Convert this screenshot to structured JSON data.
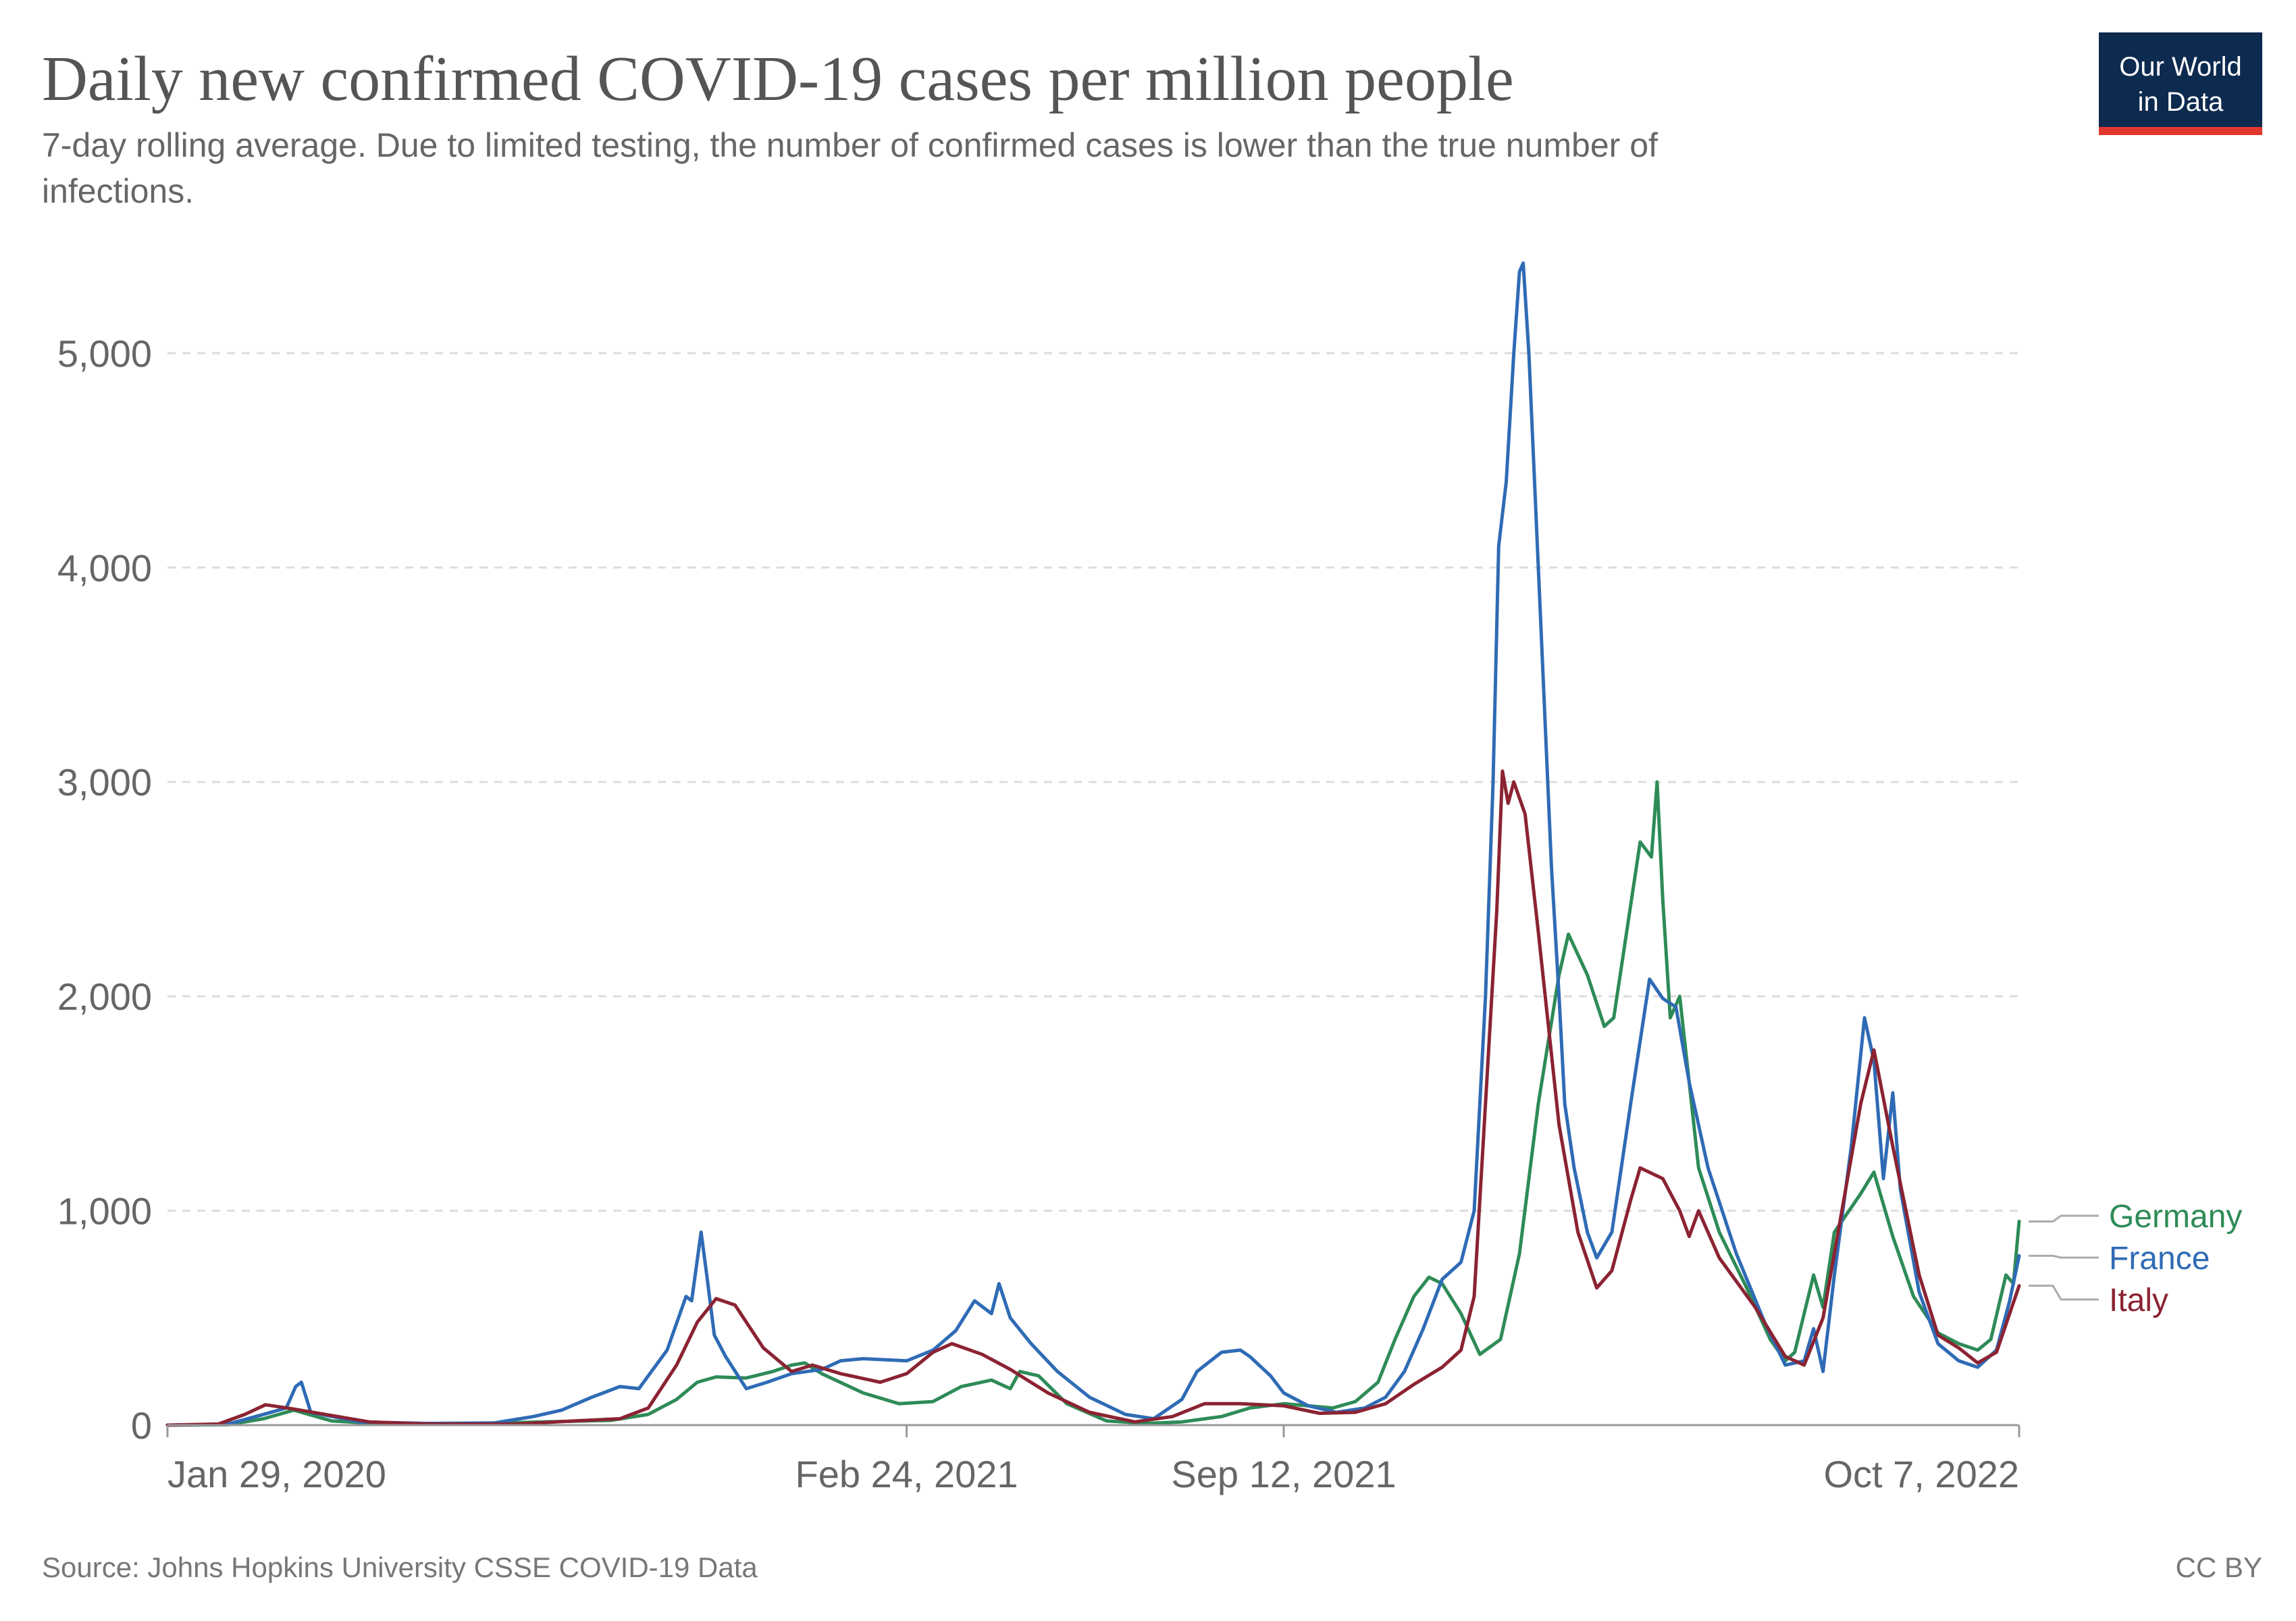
{
  "chart_data": {
    "type": "line",
    "title": "Daily new confirmed COVID-19 cases per million people",
    "subtitle_line1": "7-day rolling average. Due to limited testing, the number of confirmed cases is lower than the true number of",
    "subtitle_line2": "infections.",
    "x_axis": {
      "type": "date",
      "start": "2020-01-29",
      "end": "2022-10-07",
      "tick_labels": [
        {
          "date": "2020-01-29",
          "label": "Jan 29, 2020"
        },
        {
          "date": "2021-02-24",
          "label": "Feb 24, 2021"
        },
        {
          "date": "2021-09-12",
          "label": "Sep 12, 2021"
        },
        {
          "date": "2022-10-07",
          "label": "Oct 7, 2022"
        }
      ]
    },
    "y_axis": {
      "ylim": [
        0,
        5450
      ],
      "ticks": [
        {
          "value": 0,
          "label": "0"
        },
        {
          "value": 1000,
          "label": "1,000"
        },
        {
          "value": 2000,
          "label": "2,000"
        },
        {
          "value": 3000,
          "label": "3,000"
        },
        {
          "value": 4000,
          "label": "4,000"
        },
        {
          "value": 5000,
          "label": "5,000"
        }
      ]
    },
    "grid": "horizontal-dashed",
    "legend_placement": "right-end-labels",
    "series": [
      {
        "name": "Germany",
        "color": "#2e8b57",
        "points": [
          [
            "2020-01-29",
            0
          ],
          [
            "2020-03-01",
            2
          ],
          [
            "2020-03-20",
            30
          ],
          [
            "2020-04-05",
            70
          ],
          [
            "2020-04-25",
            20
          ],
          [
            "2020-05-20",
            6
          ],
          [
            "2020-07-01",
            5
          ],
          [
            "2020-08-15",
            15
          ],
          [
            "2020-09-20",
            22
          ],
          [
            "2020-10-10",
            50
          ],
          [
            "2020-10-25",
            120
          ],
          [
            "2020-11-05",
            200
          ],
          [
            "2020-11-15",
            225
          ],
          [
            "2020-12-01",
            220
          ],
          [
            "2020-12-15",
            250
          ],
          [
            "2020-12-25",
            280
          ],
          [
            "2021-01-01",
            290
          ],
          [
            "2021-01-10",
            240
          ],
          [
            "2021-02-01",
            150
          ],
          [
            "2021-02-20",
            100
          ],
          [
            "2021-03-10",
            110
          ],
          [
            "2021-03-25",
            180
          ],
          [
            "2021-04-10",
            210
          ],
          [
            "2021-04-20",
            170
          ],
          [
            "2021-04-25",
            250
          ],
          [
            "2021-05-05",
            230
          ],
          [
            "2021-05-20",
            100
          ],
          [
            "2021-06-10",
            20
          ],
          [
            "2021-07-01",
            8
          ],
          [
            "2021-07-20",
            15
          ],
          [
            "2021-08-10",
            40
          ],
          [
            "2021-08-25",
            80
          ],
          [
            "2021-09-12",
            100
          ],
          [
            "2021-09-25",
            90
          ],
          [
            "2021-10-08",
            80
          ],
          [
            "2021-10-20",
            110
          ],
          [
            "2021-11-01",
            200
          ],
          [
            "2021-11-10",
            400
          ],
          [
            "2021-11-20",
            600
          ],
          [
            "2021-11-28",
            690
          ],
          [
            "2021-12-05",
            660
          ],
          [
            "2021-12-15",
            520
          ],
          [
            "2021-12-25",
            330
          ],
          [
            "2022-01-05",
            400
          ],
          [
            "2022-01-15",
            800
          ],
          [
            "2022-01-25",
            1500
          ],
          [
            "2022-02-05",
            2100
          ],
          [
            "2022-02-10",
            2290
          ],
          [
            "2022-02-20",
            2100
          ],
          [
            "2022-03-01",
            1860
          ],
          [
            "2022-03-06",
            1900
          ],
          [
            "2022-03-12",
            2250
          ],
          [
            "2022-03-20",
            2720
          ],
          [
            "2022-03-26",
            2650
          ],
          [
            "2022-03-29",
            3000
          ],
          [
            "2022-04-01",
            2450
          ],
          [
            "2022-04-05",
            1900
          ],
          [
            "2022-04-10",
            2000
          ],
          [
            "2022-04-15",
            1600
          ],
          [
            "2022-04-20",
            1200
          ],
          [
            "2022-05-01",
            900
          ],
          [
            "2022-05-15",
            650
          ],
          [
            "2022-05-28",
            400
          ],
          [
            "2022-06-05",
            300
          ],
          [
            "2022-06-10",
            340
          ],
          [
            "2022-06-20",
            700
          ],
          [
            "2022-06-25",
            550
          ],
          [
            "2022-07-01",
            900
          ],
          [
            "2022-07-15",
            1080
          ],
          [
            "2022-07-22",
            1180
          ],
          [
            "2022-08-01",
            880
          ],
          [
            "2022-08-12",
            600
          ],
          [
            "2022-08-25",
            430
          ],
          [
            "2022-09-05",
            380
          ],
          [
            "2022-09-15",
            350
          ],
          [
            "2022-09-22",
            400
          ],
          [
            "2022-09-30",
            700
          ],
          [
            "2022-10-04",
            660
          ],
          [
            "2022-10-07",
            950
          ]
        ]
      },
      {
        "name": "France",
        "color": "#2f6bb5",
        "points": [
          [
            "2020-01-29",
            0
          ],
          [
            "2020-03-01",
            5
          ],
          [
            "2020-03-20",
            50
          ],
          [
            "2020-04-01",
            80
          ],
          [
            "2020-04-06",
            180
          ],
          [
            "2020-04-09",
            200
          ],
          [
            "2020-04-14",
            60
          ],
          [
            "2020-05-10",
            15
          ],
          [
            "2020-06-15",
            8
          ],
          [
            "2020-07-20",
            10
          ],
          [
            "2020-08-10",
            40
          ],
          [
            "2020-08-25",
            70
          ],
          [
            "2020-09-10",
            130
          ],
          [
            "2020-09-25",
            180
          ],
          [
            "2020-10-05",
            170
          ],
          [
            "2020-10-20",
            350
          ],
          [
            "2020-10-30",
            600
          ],
          [
            "2020-11-02",
            580
          ],
          [
            "2020-11-07",
            900
          ],
          [
            "2020-11-10",
            700
          ],
          [
            "2020-11-14",
            420
          ],
          [
            "2020-11-20",
            320
          ],
          [
            "2020-12-01",
            170
          ],
          [
            "2020-12-12",
            200
          ],
          [
            "2020-12-25",
            240
          ],
          [
            "2021-01-10",
            260
          ],
          [
            "2021-01-20",
            300
          ],
          [
            "2021-02-01",
            310
          ],
          [
            "2021-02-24",
            300
          ],
          [
            "2021-03-10",
            350
          ],
          [
            "2021-03-22",
            440
          ],
          [
            "2021-04-01",
            580
          ],
          [
            "2021-04-10",
            520
          ],
          [
            "2021-04-14",
            660
          ],
          [
            "2021-04-20",
            500
          ],
          [
            "2021-05-01",
            380
          ],
          [
            "2021-05-15",
            250
          ],
          [
            "2021-06-01",
            130
          ],
          [
            "2021-06-20",
            50
          ],
          [
            "2021-07-05",
            30
          ],
          [
            "2021-07-20",
            120
          ],
          [
            "2021-07-28",
            250
          ],
          [
            "2021-08-10",
            340
          ],
          [
            "2021-08-20",
            350
          ],
          [
            "2021-08-25",
            320
          ],
          [
            "2021-09-05",
            230
          ],
          [
            "2021-09-12",
            150
          ],
          [
            "2021-09-25",
            90
          ],
          [
            "2021-10-10",
            60
          ],
          [
            "2021-10-25",
            80
          ],
          [
            "2021-11-05",
            130
          ],
          [
            "2021-11-15",
            250
          ],
          [
            "2021-11-25",
            450
          ],
          [
            "2021-12-05",
            680
          ],
          [
            "2021-12-15",
            760
          ],
          [
            "2021-12-22",
            1000
          ],
          [
            "2021-12-28",
            2000
          ],
          [
            "2022-01-01",
            3000
          ],
          [
            "2022-01-04",
            4100
          ],
          [
            "2022-01-08",
            4400
          ],
          [
            "2022-01-12",
            5000
          ],
          [
            "2022-01-15",
            5380
          ],
          [
            "2022-01-17",
            5420
          ],
          [
            "2022-01-20",
            5000
          ],
          [
            "2022-01-26",
            3800
          ],
          [
            "2022-02-01",
            2600
          ],
          [
            "2022-02-05",
            2000
          ],
          [
            "2022-02-08",
            1500
          ],
          [
            "2022-02-13",
            1200
          ],
          [
            "2022-02-20",
            900
          ],
          [
            "2022-02-25",
            780
          ],
          [
            "2022-03-05",
            900
          ],
          [
            "2022-03-15",
            1500
          ],
          [
            "2022-03-25",
            2080
          ],
          [
            "2022-04-01",
            1990
          ],
          [
            "2022-04-08",
            1950
          ],
          [
            "2022-04-15",
            1600
          ],
          [
            "2022-04-25",
            1200
          ],
          [
            "2022-05-10",
            800
          ],
          [
            "2022-05-25",
            480
          ],
          [
            "2022-06-05",
            280
          ],
          [
            "2022-06-15",
            300
          ],
          [
            "2022-06-20",
            450
          ],
          [
            "2022-06-25",
            250
          ],
          [
            "2022-07-01",
            700
          ],
          [
            "2022-07-10",
            1300
          ],
          [
            "2022-07-17",
            1900
          ],
          [
            "2022-07-22",
            1700
          ],
          [
            "2022-07-27",
            1150
          ],
          [
            "2022-08-01",
            1550
          ],
          [
            "2022-08-05",
            1100
          ],
          [
            "2022-08-15",
            620
          ],
          [
            "2022-08-25",
            380
          ],
          [
            "2022-09-05",
            300
          ],
          [
            "2022-09-15",
            270
          ],
          [
            "2022-09-25",
            350
          ],
          [
            "2022-10-02",
            580
          ],
          [
            "2022-10-07",
            790
          ]
        ]
      },
      {
        "name": "Italy",
        "color": "#8b2332",
        "points": [
          [
            "2020-01-29",
            0
          ],
          [
            "2020-02-25",
            5
          ],
          [
            "2020-03-10",
            50
          ],
          [
            "2020-03-21",
            95
          ],
          [
            "2020-04-05",
            75
          ],
          [
            "2020-04-25",
            45
          ],
          [
            "2020-05-15",
            15
          ],
          [
            "2020-06-15",
            5
          ],
          [
            "2020-08-01",
            5
          ],
          [
            "2020-09-01",
            20
          ],
          [
            "2020-09-25",
            30
          ],
          [
            "2020-10-10",
            80
          ],
          [
            "2020-10-25",
            280
          ],
          [
            "2020-11-05",
            480
          ],
          [
            "2020-11-15",
            590
          ],
          [
            "2020-11-25",
            560
          ],
          [
            "2020-12-10",
            360
          ],
          [
            "2020-12-25",
            250
          ],
          [
            "2021-01-05",
            280
          ],
          [
            "2021-01-20",
            240
          ],
          [
            "2021-02-10",
            200
          ],
          [
            "2021-02-24",
            240
          ],
          [
            "2021-03-10",
            340
          ],
          [
            "2021-03-20",
            380
          ],
          [
            "2021-04-05",
            330
          ],
          [
            "2021-04-20",
            260
          ],
          [
            "2021-05-10",
            150
          ],
          [
            "2021-06-01",
            60
          ],
          [
            "2021-06-25",
            15
          ],
          [
            "2021-07-15",
            40
          ],
          [
            "2021-08-01",
            100
          ],
          [
            "2021-08-20",
            100
          ],
          [
            "2021-09-12",
            90
          ],
          [
            "2021-10-01",
            55
          ],
          [
            "2021-10-20",
            60
          ],
          [
            "2021-11-05",
            100
          ],
          [
            "2021-11-20",
            190
          ],
          [
            "2021-12-05",
            270
          ],
          [
            "2021-12-15",
            350
          ],
          [
            "2021-12-22",
            600
          ],
          [
            "2021-12-28",
            1500
          ],
          [
            "2022-01-03",
            2400
          ],
          [
            "2022-01-06",
            3050
          ],
          [
            "2022-01-09",
            2900
          ],
          [
            "2022-01-12",
            3000
          ],
          [
            "2022-01-18",
            2850
          ],
          [
            "2022-01-25",
            2300
          ],
          [
            "2022-02-05",
            1400
          ],
          [
            "2022-02-15",
            900
          ],
          [
            "2022-02-25",
            640
          ],
          [
            "2022-03-05",
            720
          ],
          [
            "2022-03-15",
            1050
          ],
          [
            "2022-03-20",
            1200
          ],
          [
            "2022-04-01",
            1150
          ],
          [
            "2022-04-10",
            1000
          ],
          [
            "2022-04-15",
            880
          ],
          [
            "2022-04-20",
            1000
          ],
          [
            "2022-05-01",
            780
          ],
          [
            "2022-05-20",
            550
          ],
          [
            "2022-06-05",
            320
          ],
          [
            "2022-06-15",
            280
          ],
          [
            "2022-06-25",
            500
          ],
          [
            "2022-07-05",
            1000
          ],
          [
            "2022-07-15",
            1500
          ],
          [
            "2022-07-22",
            1750
          ],
          [
            "2022-08-01",
            1300
          ],
          [
            "2022-08-15",
            700
          ],
          [
            "2022-08-25",
            420
          ],
          [
            "2022-09-05",
            360
          ],
          [
            "2022-09-15",
            290
          ],
          [
            "2022-09-25",
            340
          ],
          [
            "2022-10-07",
            650
          ]
        ]
      }
    ],
    "source": "Source: Johns Hopkins University CSSE COVID-19 Data",
    "license": "CC BY"
  },
  "logo": {
    "line1": "Our World",
    "line2": "in Data",
    "bg_color": "#0d2a4f",
    "accent_color": "#e0372e"
  }
}
